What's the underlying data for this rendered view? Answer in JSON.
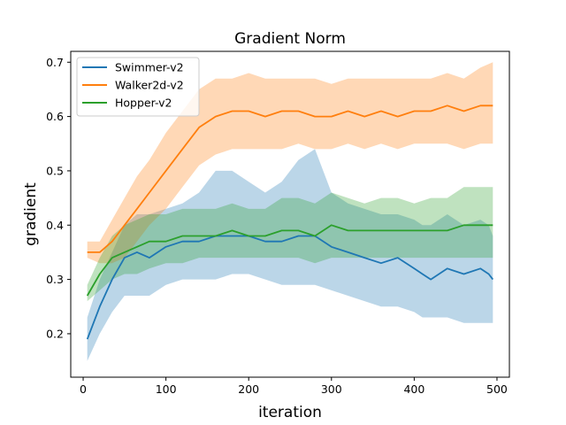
{
  "chart_data": {
    "type": "line",
    "title": "Gradient Norm",
    "xlabel": "iteration",
    "ylabel": "gradient",
    "xlim": [
      -15,
      515
    ],
    "ylim": [
      0.12,
      0.72
    ],
    "xticks": [
      0,
      100,
      200,
      300,
      400,
      500
    ],
    "yticks": [
      0.2,
      0.3,
      0.4,
      0.5,
      0.6,
      0.7
    ],
    "xtick_labels": [
      "0",
      "100",
      "200",
      "300",
      "400",
      "500"
    ],
    "ytick_labels": [
      "0.2",
      "0.3",
      "0.4",
      "0.5",
      "0.6",
      "0.7"
    ],
    "legend_position": "top-left",
    "grid": false,
    "series": [
      {
        "name": "Swimmer-v2",
        "color": "#1f77b4",
        "x": [
          5,
          20,
          35,
          50,
          65,
          80,
          100,
          120,
          140,
          160,
          180,
          200,
          220,
          240,
          260,
          280,
          300,
          320,
          340,
          360,
          380,
          400,
          410,
          420,
          440,
          460,
          480,
          490,
          495
        ],
        "mean": [
          0.19,
          0.25,
          0.3,
          0.34,
          0.35,
          0.34,
          0.36,
          0.37,
          0.37,
          0.38,
          0.38,
          0.38,
          0.37,
          0.37,
          0.38,
          0.38,
          0.36,
          0.35,
          0.34,
          0.33,
          0.34,
          0.32,
          0.31,
          0.3,
          0.32,
          0.31,
          0.32,
          0.31,
          0.3
        ],
        "lower": [
          0.15,
          0.2,
          0.24,
          0.27,
          0.27,
          0.27,
          0.29,
          0.3,
          0.3,
          0.3,
          0.31,
          0.31,
          0.3,
          0.29,
          0.29,
          0.29,
          0.28,
          0.27,
          0.26,
          0.25,
          0.25,
          0.24,
          0.23,
          0.23,
          0.23,
          0.22,
          0.22,
          0.22,
          0.22
        ],
        "upper": [
          0.23,
          0.3,
          0.35,
          0.4,
          0.42,
          0.42,
          0.43,
          0.44,
          0.46,
          0.5,
          0.5,
          0.48,
          0.46,
          0.48,
          0.52,
          0.54,
          0.46,
          0.44,
          0.43,
          0.42,
          0.42,
          0.41,
          0.4,
          0.4,
          0.42,
          0.4,
          0.41,
          0.4,
          0.38
        ]
      },
      {
        "name": "Walker2d-v2",
        "color": "#ff7f0e",
        "x": [
          5,
          20,
          35,
          50,
          65,
          80,
          100,
          120,
          140,
          160,
          180,
          200,
          220,
          240,
          260,
          280,
          300,
          320,
          340,
          360,
          380,
          400,
          420,
          440,
          460,
          480,
          495
        ],
        "mean": [
          0.35,
          0.35,
          0.37,
          0.4,
          0.43,
          0.46,
          0.5,
          0.54,
          0.58,
          0.6,
          0.61,
          0.61,
          0.6,
          0.61,
          0.61,
          0.6,
          0.6,
          0.61,
          0.6,
          0.61,
          0.6,
          0.61,
          0.61,
          0.62,
          0.61,
          0.62,
          0.62
        ],
        "lower": [
          0.34,
          0.33,
          0.33,
          0.34,
          0.37,
          0.4,
          0.43,
          0.47,
          0.51,
          0.53,
          0.54,
          0.54,
          0.54,
          0.54,
          0.55,
          0.54,
          0.54,
          0.55,
          0.54,
          0.55,
          0.54,
          0.55,
          0.55,
          0.55,
          0.54,
          0.55,
          0.55
        ],
        "upper": [
          0.37,
          0.37,
          0.41,
          0.45,
          0.49,
          0.52,
          0.57,
          0.61,
          0.65,
          0.67,
          0.67,
          0.68,
          0.67,
          0.67,
          0.67,
          0.67,
          0.66,
          0.67,
          0.67,
          0.67,
          0.67,
          0.67,
          0.67,
          0.68,
          0.67,
          0.69,
          0.7
        ]
      },
      {
        "name": "Hopper-v2",
        "color": "#2ca02c",
        "x": [
          5,
          20,
          35,
          50,
          65,
          80,
          100,
          120,
          140,
          160,
          180,
          200,
          220,
          240,
          260,
          280,
          300,
          320,
          340,
          360,
          380,
          400,
          420,
          440,
          460,
          480,
          495
        ],
        "mean": [
          0.27,
          0.31,
          0.34,
          0.35,
          0.36,
          0.37,
          0.37,
          0.38,
          0.38,
          0.38,
          0.39,
          0.38,
          0.38,
          0.39,
          0.39,
          0.38,
          0.4,
          0.39,
          0.39,
          0.39,
          0.39,
          0.39,
          0.39,
          0.39,
          0.4,
          0.4,
          0.4
        ],
        "lower": [
          0.26,
          0.28,
          0.3,
          0.31,
          0.31,
          0.32,
          0.33,
          0.33,
          0.34,
          0.34,
          0.34,
          0.34,
          0.34,
          0.34,
          0.34,
          0.33,
          0.34,
          0.34,
          0.34,
          0.34,
          0.34,
          0.34,
          0.34,
          0.34,
          0.34,
          0.34,
          0.34
        ],
        "upper": [
          0.29,
          0.34,
          0.38,
          0.4,
          0.41,
          0.42,
          0.42,
          0.43,
          0.43,
          0.43,
          0.44,
          0.43,
          0.43,
          0.45,
          0.45,
          0.44,
          0.46,
          0.45,
          0.44,
          0.45,
          0.45,
          0.44,
          0.45,
          0.45,
          0.47,
          0.47,
          0.47
        ]
      }
    ]
  }
}
